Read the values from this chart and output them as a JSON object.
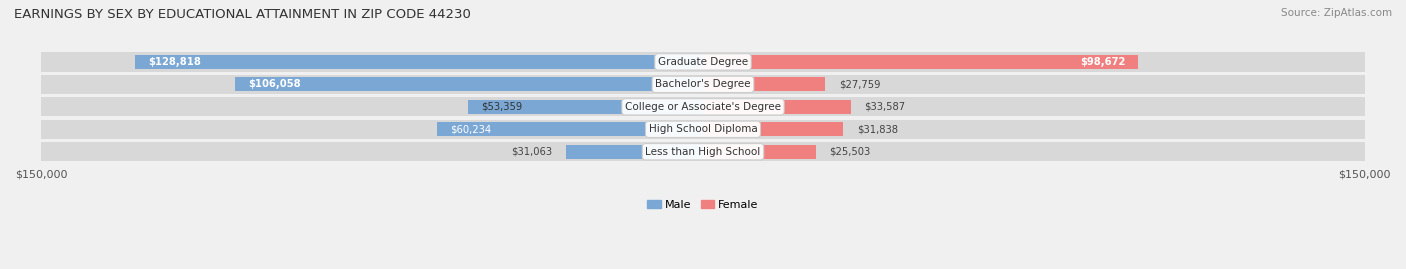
{
  "title": "EARNINGS BY SEX BY EDUCATIONAL ATTAINMENT IN ZIP CODE 44230",
  "source": "Source: ZipAtlas.com",
  "categories": [
    "Less than High School",
    "High School Diploma",
    "College or Associate's Degree",
    "Bachelor's Degree",
    "Graduate Degree"
  ],
  "male_values": [
    31063,
    60234,
    53359,
    106058,
    128818
  ],
  "female_values": [
    25503,
    31838,
    33587,
    27759,
    98672
  ],
  "male_color": "#7ba7d4",
  "female_color": "#f08080",
  "male_label": "Male",
  "female_label": "Female",
  "axis_limit": 150000,
  "axis_tick_label": "$150,000",
  "background_color": "#f0f0f0",
  "row_background_color": "#e8e8e8",
  "bar_row_bg": "#dcdcdc"
}
